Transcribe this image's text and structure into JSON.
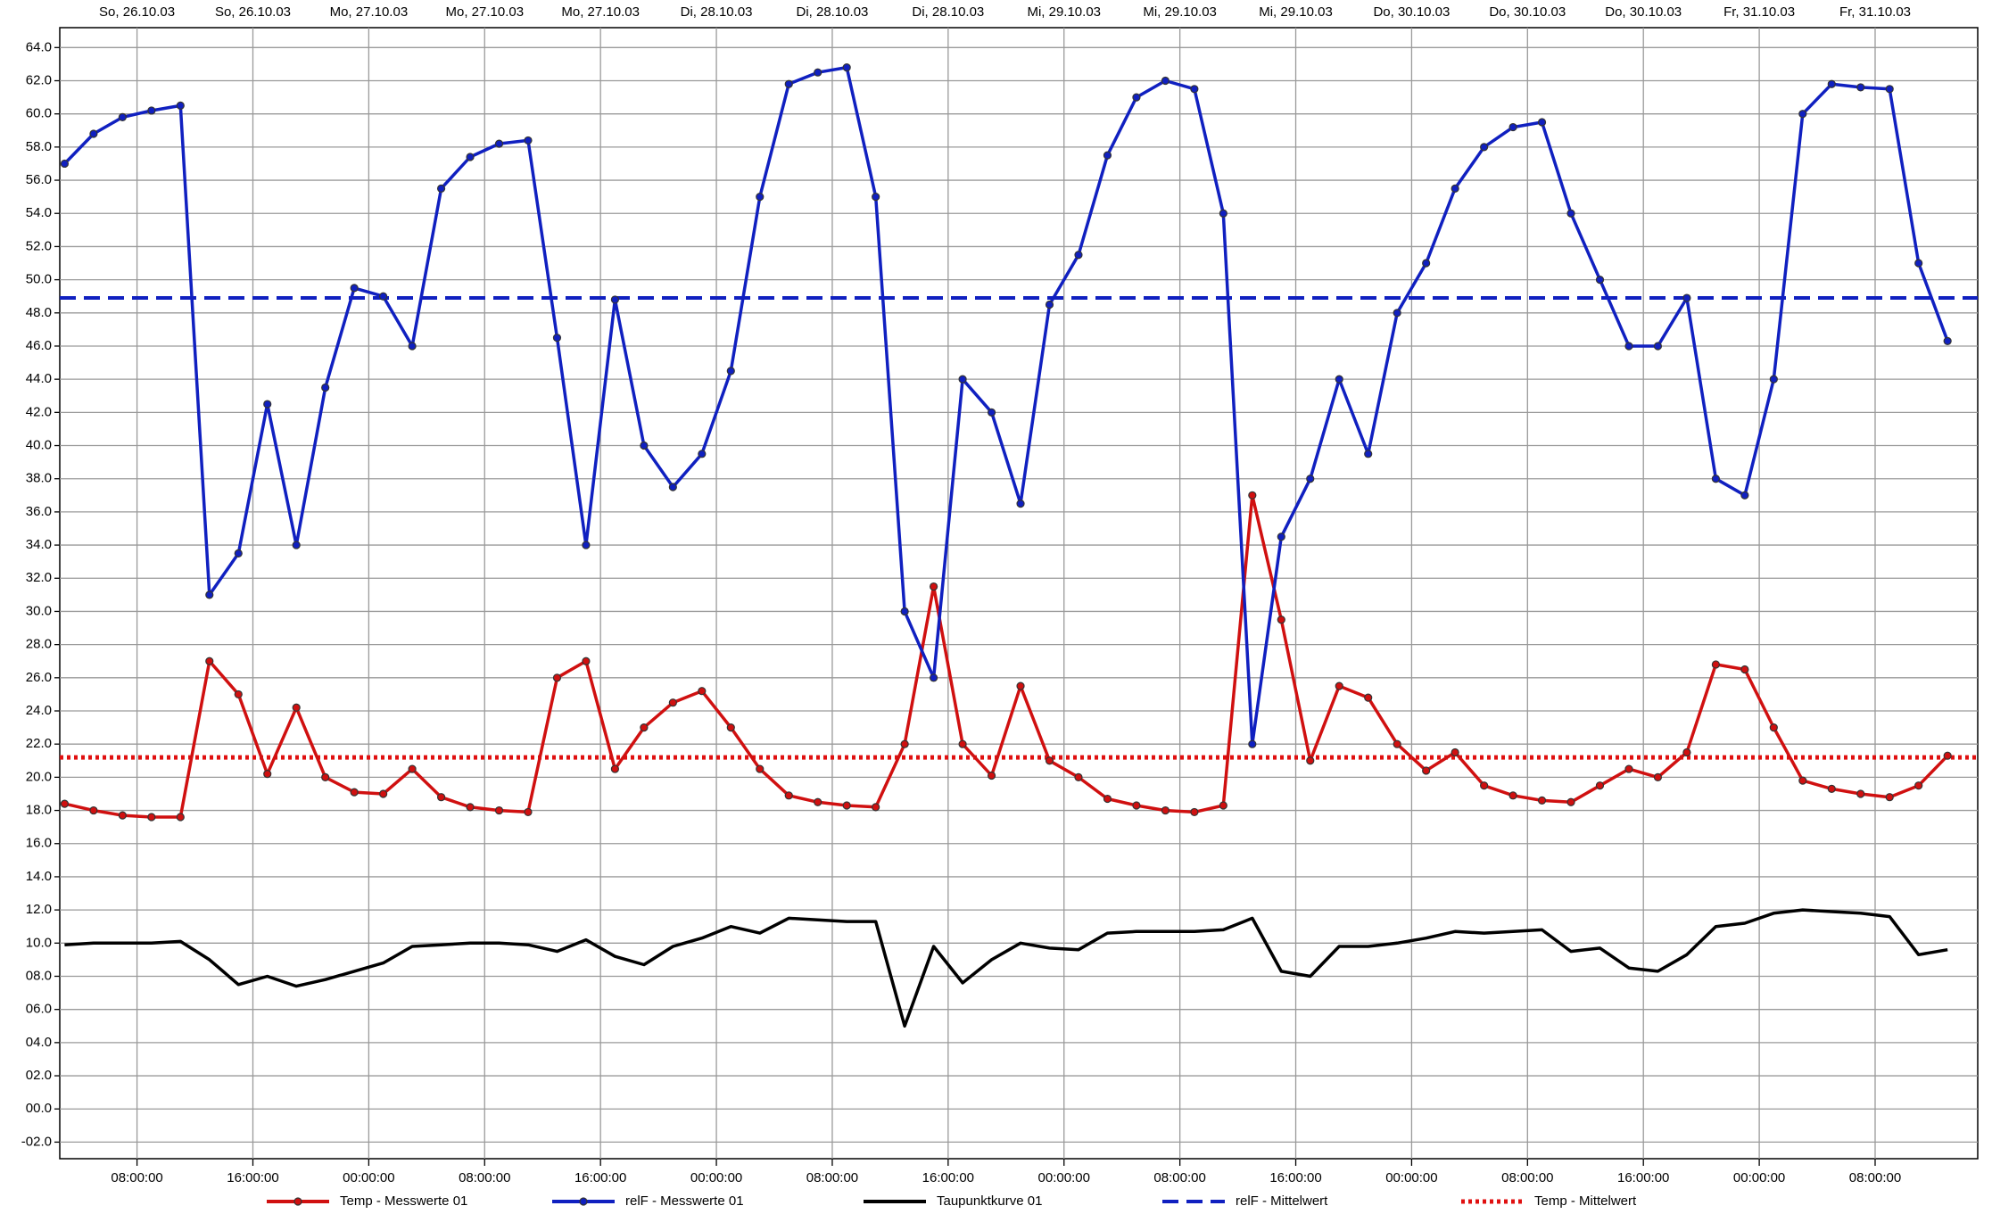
{
  "chart_data": {
    "type": "line",
    "x": [
      "2003-10-26 03:00",
      "2003-10-26 05:00",
      "2003-10-26 07:00",
      "2003-10-26 09:00",
      "2003-10-26 11:00",
      "2003-10-26 13:00",
      "2003-10-26 15:00",
      "2003-10-26 17:00",
      "2003-10-26 19:00",
      "2003-10-26 21:00",
      "2003-10-26 23:00",
      "2003-10-27 01:00",
      "2003-10-27 03:00",
      "2003-10-27 05:00",
      "2003-10-27 07:00",
      "2003-10-27 09:00",
      "2003-10-27 11:00",
      "2003-10-27 13:00",
      "2003-10-27 15:00",
      "2003-10-27 17:00",
      "2003-10-27 19:00",
      "2003-10-27 21:00",
      "2003-10-27 23:00",
      "2003-10-28 01:00",
      "2003-10-28 03:00",
      "2003-10-28 05:00",
      "2003-10-28 07:00",
      "2003-10-28 09:00",
      "2003-10-28 11:00",
      "2003-10-28 13:00",
      "2003-10-28 15:00",
      "2003-10-28 17:00",
      "2003-10-28 19:00",
      "2003-10-28 21:00",
      "2003-10-28 23:00",
      "2003-10-29 01:00",
      "2003-10-29 03:00",
      "2003-10-29 05:00",
      "2003-10-29 07:00",
      "2003-10-29 09:00",
      "2003-10-29 11:00",
      "2003-10-29 13:00",
      "2003-10-29 15:00",
      "2003-10-29 17:00",
      "2003-10-29 19:00",
      "2003-10-29 21:00",
      "2003-10-29 23:00",
      "2003-10-30 01:00",
      "2003-10-30 03:00",
      "2003-10-30 05:00",
      "2003-10-30 07:00",
      "2003-10-30 09:00",
      "2003-10-30 11:00",
      "2003-10-30 13:00",
      "2003-10-30 15:00",
      "2003-10-30 17:00",
      "2003-10-30 19:00",
      "2003-10-30 21:00",
      "2003-10-30 23:00",
      "2003-10-31 01:00",
      "2003-10-31 03:00",
      "2003-10-31 05:00",
      "2003-10-31 07:00",
      "2003-10-31 09:00",
      "2003-10-31 11:00",
      "2003-10-31 13:00"
    ],
    "series": [
      {
        "name": "Temp - Messwerte 01",
        "color": "#d01010",
        "markers": true,
        "values": [
          18.4,
          18.0,
          17.7,
          17.6,
          17.6,
          27.0,
          25.0,
          20.2,
          24.2,
          20.0,
          19.1,
          19.0,
          20.5,
          18.8,
          18.2,
          18.0,
          17.9,
          26.0,
          27.0,
          20.5,
          23.0,
          24.5,
          25.2,
          23.0,
          20.5,
          18.9,
          18.5,
          18.3,
          18.2,
          22.0,
          31.5,
          22.0,
          20.1,
          25.5,
          21.0,
          20.0,
          18.7,
          18.3,
          18.0,
          17.9,
          18.3,
          37.0,
          29.5,
          21.0,
          25.5,
          24.8,
          22.0,
          20.4,
          21.5,
          19.5,
          18.9,
          18.6,
          18.5,
          19.5,
          20.5,
          20.0,
          21.5,
          26.8,
          26.5,
          23.0,
          19.8,
          19.3,
          19.0,
          18.8,
          19.5,
          21.3
        ]
      },
      {
        "name": "relF - Messwerte 01",
        "color": "#1020c0",
        "markers": true,
        "values": [
          57.0,
          58.8,
          59.8,
          60.2,
          60.5,
          31.0,
          33.5,
          42.5,
          34.0,
          43.5,
          49.5,
          49.0,
          46.0,
          55.5,
          57.4,
          58.2,
          58.4,
          46.5,
          34.0,
          48.8,
          40.0,
          37.5,
          39.5,
          44.5,
          55.0,
          61.8,
          62.5,
          62.8,
          55.0,
          30.0,
          26.0,
          44.0,
          42.0,
          36.5,
          48.5,
          51.5,
          57.5,
          61.0,
          62.0,
          61.5,
          54.0,
          22.0,
          34.5,
          38.0,
          44.0,
          39.5,
          48.0,
          51.0,
          55.5,
          58.0,
          59.2,
          59.5,
          54.0,
          50.0,
          46.0,
          46.0,
          48.9,
          38.0,
          37.0,
          44.0,
          60.0,
          61.8,
          61.6,
          61.5,
          51.0,
          46.3
        ]
      },
      {
        "name": "Taupunktkurve 01",
        "color": "#000000",
        "markers": false,
        "values": [
          9.9,
          10.0,
          10.0,
          10.0,
          10.1,
          9.0,
          7.5,
          8.0,
          7.4,
          7.8,
          8.3,
          8.8,
          9.8,
          9.9,
          10.0,
          10.0,
          9.9,
          9.5,
          10.2,
          9.2,
          8.7,
          9.8,
          10.3,
          11.0,
          10.6,
          11.5,
          11.4,
          11.3,
          11.3,
          5.0,
          9.8,
          7.6,
          9.0,
          10.0,
          9.7,
          9.6,
          10.6,
          10.7,
          10.7,
          10.7,
          10.8,
          11.5,
          8.3,
          8.0,
          9.8,
          9.8,
          10.0,
          10.3,
          10.7,
          10.6,
          10.7,
          10.8,
          9.5,
          9.7,
          8.5,
          8.3,
          9.3,
          11.0,
          11.2,
          11.8,
          12.0,
          11.9,
          11.8,
          11.6,
          9.3,
          9.6
        ]
      }
    ],
    "hlines": [
      {
        "name": "relF - Mittelwert",
        "color": "#1020c0",
        "style": "dashed",
        "value": 48.9
      },
      {
        "name": "Temp - Mittelwert",
        "color": "#e01010",
        "style": "dotted",
        "value": 21.2
      }
    ],
    "xlim": [
      "2003-10-26 02:40",
      "2003-10-31 15:05"
    ],
    "xticks": [
      {
        "value": "2003-10-26 08:00",
        "label": "08:00:00"
      },
      {
        "value": "2003-10-26 16:00",
        "label": "16:00:00"
      },
      {
        "value": "2003-10-27 00:00",
        "label": "00:00:00"
      },
      {
        "value": "2003-10-27 08:00",
        "label": "08:00:00"
      },
      {
        "value": "2003-10-27 16:00",
        "label": "16:00:00"
      },
      {
        "value": "2003-10-28 00:00",
        "label": "00:00:00"
      },
      {
        "value": "2003-10-28 08:00",
        "label": "08:00:00"
      },
      {
        "value": "2003-10-28 16:00",
        "label": "16:00:00"
      },
      {
        "value": "2003-10-29 00:00",
        "label": "00:00:00"
      },
      {
        "value": "2003-10-29 08:00",
        "label": "08:00:00"
      },
      {
        "value": "2003-10-29 16:00",
        "label": "16:00:00"
      },
      {
        "value": "2003-10-30 00:00",
        "label": "00:00:00"
      },
      {
        "value": "2003-10-30 08:00",
        "label": "08:00:00"
      },
      {
        "value": "2003-10-30 16:00",
        "label": "16:00:00"
      },
      {
        "value": "2003-10-31 00:00",
        "label": "00:00:00"
      },
      {
        "value": "2003-10-31 08:00",
        "label": "08:00:00"
      }
    ],
    "xticks_top": [
      "So, 26.10.03",
      "So, 26.10.03",
      "Mo, 27.10.03",
      "Mo, 27.10.03",
      "Mo, 27.10.03",
      "Di, 28.10.03",
      "Di, 28.10.03",
      "Di, 28.10.03",
      "Mi, 29.10.03",
      "Mi, 29.10.03",
      "Mi, 29.10.03",
      "Do, 30.10.03",
      "Do, 30.10.03",
      "Do, 30.10.03",
      "Fr, 31.10.03",
      "Fr, 31.10.03"
    ],
    "ylim": [
      -3,
      65.2
    ],
    "yticks": [
      {
        "value": 64,
        "label": "64.0"
      },
      {
        "value": 62,
        "label": "62.0"
      },
      {
        "value": 60,
        "label": "60.0"
      },
      {
        "value": 58,
        "label": "58.0"
      },
      {
        "value": 56,
        "label": "56.0"
      },
      {
        "value": 54,
        "label": "54.0"
      },
      {
        "value": 52,
        "label": "52.0"
      },
      {
        "value": 50,
        "label": "50.0"
      },
      {
        "value": 48,
        "label": "48.0"
      },
      {
        "value": 46,
        "label": "46.0"
      },
      {
        "value": 44,
        "label": "44.0"
      },
      {
        "value": 42,
        "label": "42.0"
      },
      {
        "value": 40,
        "label": "40.0"
      },
      {
        "value": 38,
        "label": "38.0"
      },
      {
        "value": 36,
        "label": "36.0"
      },
      {
        "value": 34,
        "label": "34.0"
      },
      {
        "value": 32,
        "label": "32.0"
      },
      {
        "value": 30,
        "label": "30.0"
      },
      {
        "value": 28,
        "label": "28.0"
      },
      {
        "value": 26,
        "label": "26.0"
      },
      {
        "value": 24,
        "label": "24.0"
      },
      {
        "value": 22,
        "label": "22.0"
      },
      {
        "value": 20,
        "label": "20.0"
      },
      {
        "value": 18,
        "label": "18.0"
      },
      {
        "value": 16,
        "label": "16.0"
      },
      {
        "value": 14,
        "label": "14.0"
      },
      {
        "value": 12,
        "label": "12.0"
      },
      {
        "value": 10,
        "label": "10.0"
      },
      {
        "value": 8,
        "label": "08.0"
      },
      {
        "value": 6,
        "label": "06.0"
      },
      {
        "value": 4,
        "label": "04.0"
      },
      {
        "value": 2,
        "label": "02.0"
      },
      {
        "value": 0,
        "label": "00.0"
      },
      {
        "value": -2,
        "label": "-02.0"
      }
    ],
    "grid": true
  }
}
